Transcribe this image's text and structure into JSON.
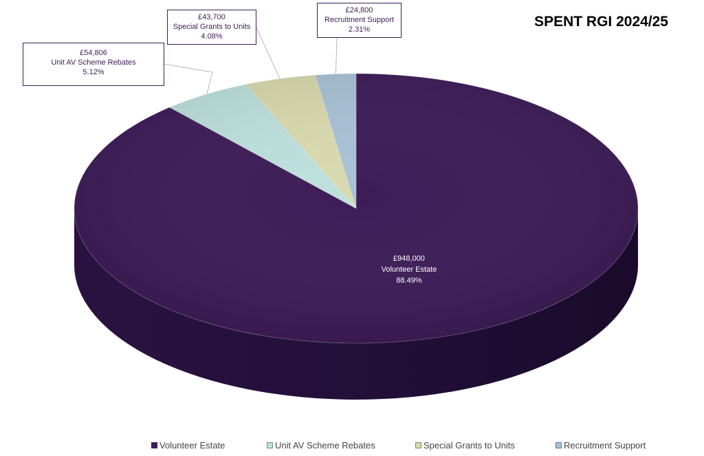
{
  "chart_data": {
    "type": "pie",
    "title": "SPENT RGI 2024/25",
    "legend_position": "bottom",
    "slices": [
      {
        "label": "Volunteer Estate",
        "value": 948000,
        "value_label": "£948,000",
        "percent_label": "88.49%",
        "percent": 88.49,
        "color": "#3d1b57"
      },
      {
        "label": "Unit AV Scheme Rebates",
        "value": 54806,
        "value_label": "£54,806",
        "percent_label": "5.12%",
        "percent": 5.12,
        "color": "#bde0dc"
      },
      {
        "label": "Special Grants to Units",
        "value": 43700,
        "value_label": "£43,700",
        "percent_label": "4.08%",
        "percent": 4.08,
        "color": "#d8d9ad"
      },
      {
        "label": "Recruitment Support",
        "value": 24800,
        "value_label": "£24,800",
        "percent_label": "2.31%",
        "percent": 2.31,
        "color": "#a9c1d6"
      }
    ]
  }
}
